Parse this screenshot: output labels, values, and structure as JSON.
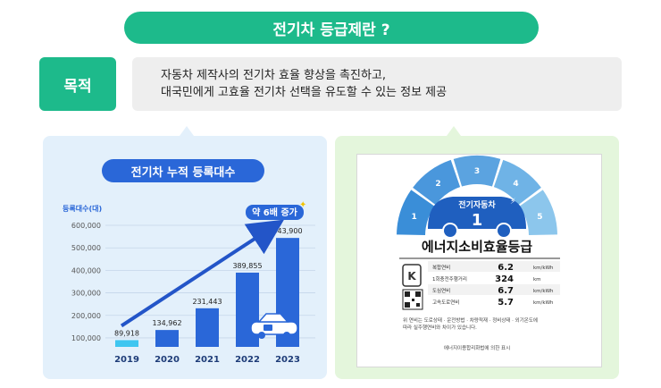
{
  "header": {
    "title": "전기차 등급제란 ?"
  },
  "purpose": {
    "label": "목적",
    "line1": "자동차 제작사의 전기차 효율 향상을 촉진하고,",
    "line2": "대국민에게 고효율 전기차 선택을 유도할 수 있는 정보 제공"
  },
  "chart_data": {
    "type": "bar",
    "title": "전기차 누적 등록대수",
    "ylabel": "등록대수(대)",
    "categories": [
      "2019",
      "2020",
      "2021",
      "2022",
      "2023"
    ],
    "values": [
      89918,
      134962,
      231443,
      389855,
      543900
    ],
    "value_labels": [
      "89,918",
      "134,962",
      "231,443",
      "389,855",
      "543,900"
    ],
    "y_ticks": [
      100000,
      200000,
      300000,
      400000,
      500000,
      600000
    ],
    "y_tick_labels": [
      "100,000",
      "200,000",
      "300,000",
      "400,000",
      "500,000",
      "600,000"
    ],
    "ylim": [
      60000,
      620000
    ],
    "grid": true,
    "annotation": "약 6배 증가",
    "colors": {
      "first": "#3fc6f0",
      "rest": "#2a67d8",
      "arrow": "#2355c8"
    }
  },
  "label_card": {
    "grade_numbers": [
      "1",
      "2",
      "3",
      "4",
      "5"
    ],
    "segment_colors": [
      "#3a8ed8",
      "#4a97dc",
      "#5ba3e0",
      "#6fb3e6",
      "#8cc6ec"
    ],
    "grade_title": "전기자동차",
    "grade_value": "1",
    "heading": "에너지소비효율등급",
    "rows": [
      {
        "label": "복합연비",
        "value": "6.2",
        "unit": "km/kWh"
      },
      {
        "label": "1회충전주행거리",
        "value": "324",
        "unit": "km"
      },
      {
        "label": "도심연비",
        "value": "6.7",
        "unit": "km/kWh"
      },
      {
        "label": "고속도로연비",
        "value": "5.7",
        "unit": "km/kWh"
      }
    ],
    "note1": "위 연비는 도로상태 · 운전방법 · 차량적재 · 정비상태 · 외기온도에",
    "note2": "따라 실주행연비와 차이가 있습니다.",
    "footer": "에너지이용합리화법에 의한 표시"
  }
}
